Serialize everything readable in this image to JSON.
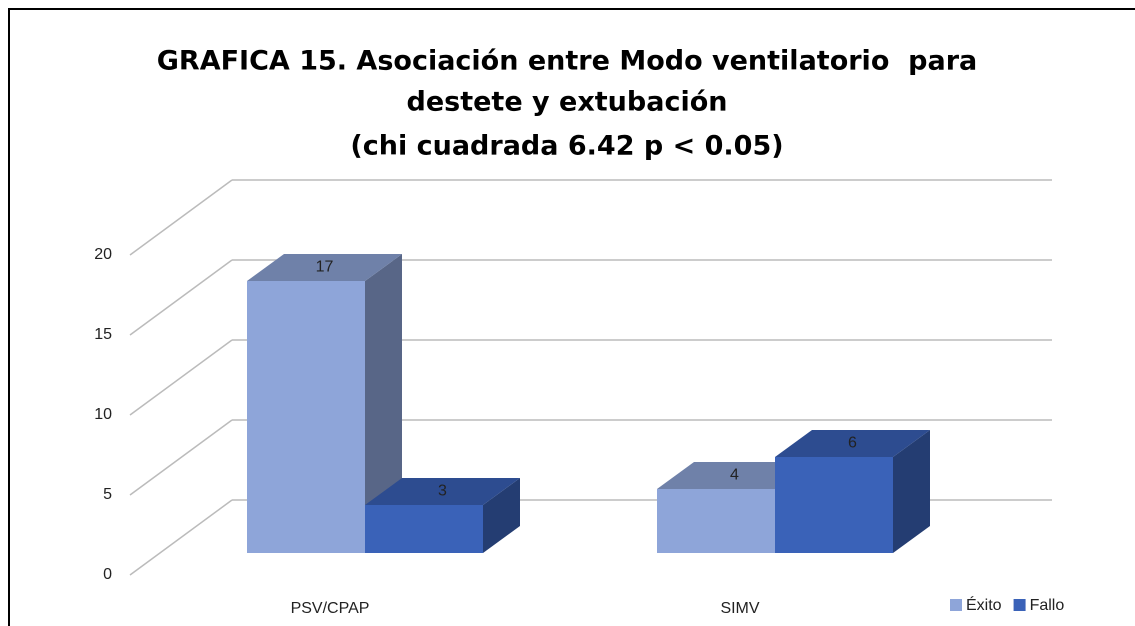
{
  "chart_data": {
    "type": "bar3d",
    "title": [
      "GRAFICA 15. Asociación entre Modo ventilatorio  para",
      "destete y extubación"
    ],
    "subtitle": "(chi cuadrada 6.42 p < 0.05)",
    "categories": [
      "PSV/CPAP",
      "SIMV"
    ],
    "series": [
      {
        "name": "Éxito",
        "color": "#8ea5d9",
        "values": [
          17,
          4
        ]
      },
      {
        "name": "Fallo",
        "color": "#3a62b8",
        "values": [
          3,
          6
        ]
      }
    ],
    "ylim": [
      0,
      20
    ],
    "yticks": [
      0,
      5,
      10,
      15,
      20
    ],
    "grid": true,
    "legend": "bottom-right"
  }
}
